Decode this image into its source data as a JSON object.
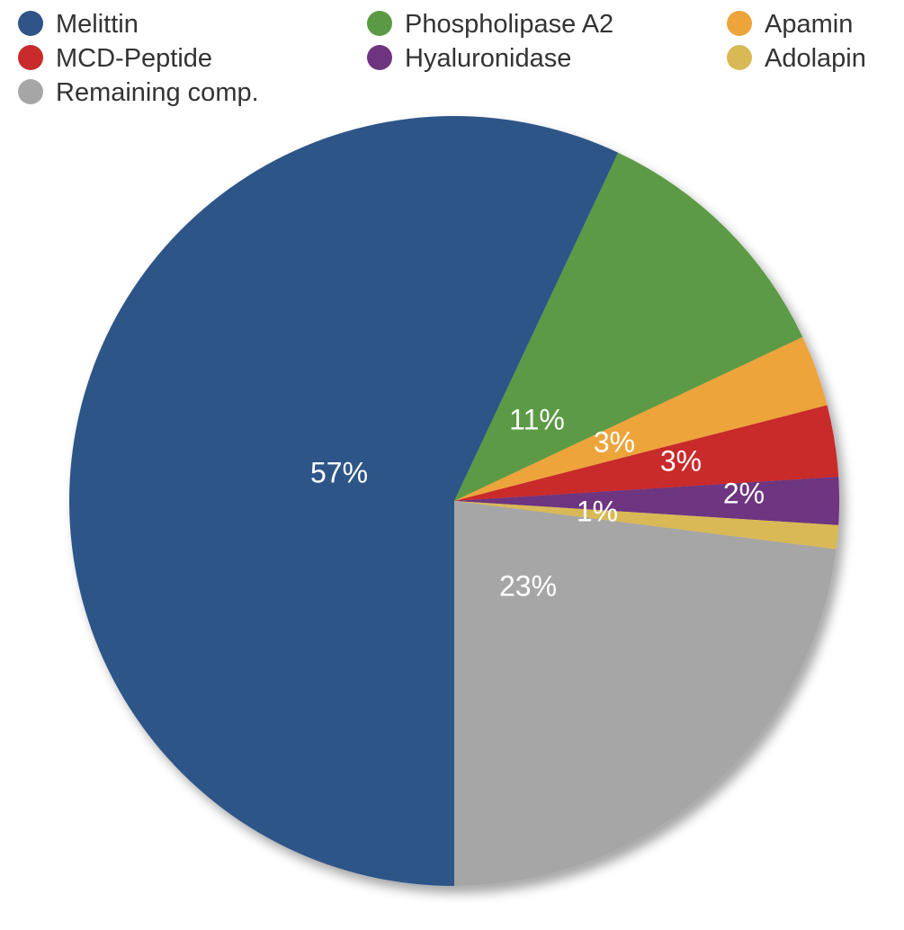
{
  "chart_data": {
    "type": "pie",
    "title": "",
    "slices": [
      {
        "label": "Melittin",
        "value": 57,
        "value_label": "57%",
        "color": "#2e5488"
      },
      {
        "label": "Phospholipase A2",
        "value": 11,
        "value_label": "11%",
        "color": "#5b9a45"
      },
      {
        "label": "Apamin",
        "value": 3,
        "value_label": "3%",
        "color": "#eda43b"
      },
      {
        "label": "MCD-Peptide",
        "value": 3,
        "value_label": "3%",
        "color": "#c92a2c"
      },
      {
        "label": "Hyaluronidase",
        "value": 2,
        "value_label": "2%",
        "color": "#6e3480"
      },
      {
        "label": "Adolapin",
        "value": 1,
        "value_label": "1%",
        "color": "#d9b956"
      },
      {
        "label": "Remaining comp.",
        "value": 23,
        "value_label": "23%",
        "color": "#a6a6a6"
      }
    ],
    "legend": {
      "placement": "top",
      "order": [
        "Melittin",
        "Phospholipase A2",
        "Apamin",
        "MCD-Peptide",
        "Hyaluronidase",
        "Adolapin",
        "Remaining comp."
      ]
    }
  }
}
